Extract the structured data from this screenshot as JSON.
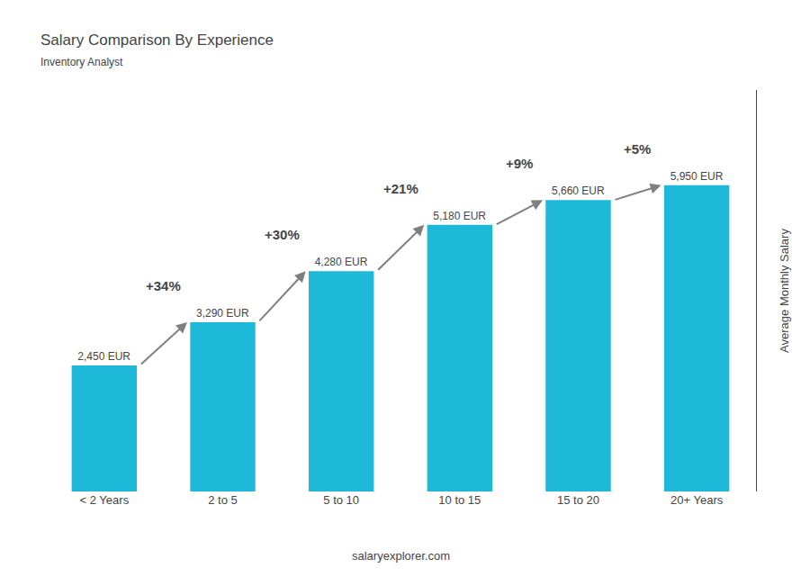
{
  "chart_data": {
    "type": "bar",
    "title": "Salary Comparison By Experience",
    "subtitle": "Inventory Analyst",
    "categories": [
      "< 2 Years",
      "2 to 5",
      "5 to 10",
      "10 to 15",
      "15 to 20",
      "20+ Years"
    ],
    "values": [
      2450,
      3290,
      4280,
      5180,
      5660,
      5950
    ],
    "value_labels": [
      "2,450 EUR",
      "3,290 EUR",
      "4,280 EUR",
      "5,180 EUR",
      "5,660 EUR",
      "5,950 EUR"
    ],
    "data_labels": true,
    "color": "#1eb8d8",
    "ylabel": "Average Monthly Salary",
    "ylim": [
      0,
      7800
    ],
    "annotations": [
      "+34%",
      "+30%",
      "+21%",
      "+9%",
      "+5%"
    ],
    "footer": "salaryexplorer.com",
    "grid": false,
    "tick_labels": "x"
  }
}
